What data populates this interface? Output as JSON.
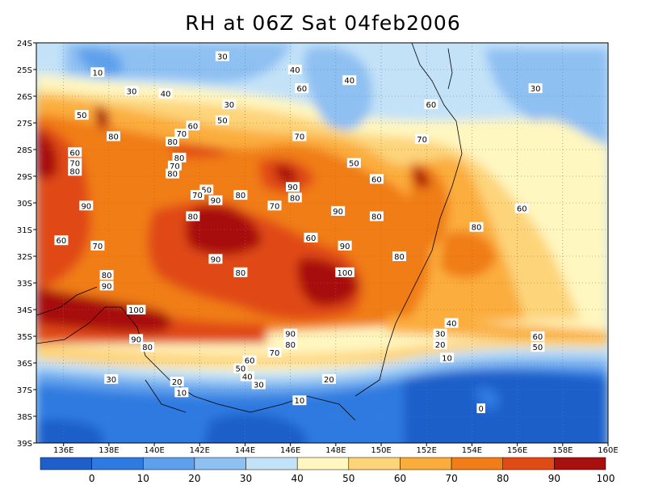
{
  "title": "RH at 06Z Sat 04feb2006",
  "colors": {
    "c0": "#1f5fc9",
    "c10": "#2e7ae0",
    "c20": "#5ea0ec",
    "c30": "#8ec0f2",
    "c40": "#c3e2f8",
    "c50": "#fff6c0",
    "c60": "#fdd47a",
    "c70": "#fbad3c",
    "c80": "#f07d18",
    "c90": "#e04a14",
    "c100": "#a80f0f"
  },
  "lat_ticks": [
    "24S",
    "25S",
    "26S",
    "27S",
    "28S",
    "29S",
    "30S",
    "31S",
    "32S",
    "33S",
    "34S",
    "35S",
    "36S",
    "37S",
    "38S",
    "39S"
  ],
  "lon_ticks": [
    "136E",
    "138E",
    "140E",
    "142E",
    "144E",
    "146E",
    "148E",
    "150E",
    "152E",
    "154E",
    "156E",
    "158E",
    "160E"
  ],
  "contour_labels": [
    {
      "t": "10",
      "lon": 137.5,
      "lat": 25.1
    },
    {
      "t": "30",
      "lon": 139.0,
      "lat": 25.8
    },
    {
      "t": "30",
      "lon": 143.0,
      "lat": 24.5
    },
    {
      "t": "40",
      "lon": 146.2,
      "lat": 25.0
    },
    {
      "t": "40",
      "lon": 140.5,
      "lat": 25.9
    },
    {
      "t": "40",
      "lon": 148.6,
      "lat": 25.4
    },
    {
      "t": "60",
      "lon": 146.5,
      "lat": 25.7
    },
    {
      "t": "30",
      "lon": 143.3,
      "lat": 26.3
    },
    {
      "t": "30",
      "lon": 156.8,
      "lat": 25.7
    },
    {
      "t": "50",
      "lon": 136.8,
      "lat": 26.7
    },
    {
      "t": "50",
      "lon": 143.0,
      "lat": 26.9
    },
    {
      "t": "60",
      "lon": 152.2,
      "lat": 26.3
    },
    {
      "t": "80",
      "lon": 138.2,
      "lat": 27.5
    },
    {
      "t": "60",
      "lon": 141.7,
      "lat": 27.1
    },
    {
      "t": "70",
      "lon": 141.2,
      "lat": 27.4
    },
    {
      "t": "80",
      "lon": 140.8,
      "lat": 27.7
    },
    {
      "t": "70",
      "lon": 146.4,
      "lat": 27.5
    },
    {
      "t": "70",
      "lon": 151.8,
      "lat": 27.6
    },
    {
      "t": "60",
      "lon": 136.5,
      "lat": 28.1
    },
    {
      "t": "70",
      "lon": 136.5,
      "lat": 28.5
    },
    {
      "t": "80",
      "lon": 136.5,
      "lat": 28.8
    },
    {
      "t": "80",
      "lon": 141.1,
      "lat": 28.3
    },
    {
      "t": "70",
      "lon": 140.9,
      "lat": 28.6
    },
    {
      "t": "80",
      "lon": 140.8,
      "lat": 28.9
    },
    {
      "t": "50",
      "lon": 148.8,
      "lat": 28.5
    },
    {
      "t": "60",
      "lon": 149.8,
      "lat": 29.1
    },
    {
      "t": "50",
      "lon": 142.3,
      "lat": 29.5
    },
    {
      "t": "70",
      "lon": 141.9,
      "lat": 29.7
    },
    {
      "t": "90",
      "lon": 142.7,
      "lat": 29.9
    },
    {
      "t": "80",
      "lon": 143.8,
      "lat": 29.7
    },
    {
      "t": "90",
      "lon": 146.1,
      "lat": 29.4
    },
    {
      "t": "80",
      "lon": 146.2,
      "lat": 29.8
    },
    {
      "t": "90",
      "lon": 137.0,
      "lat": 30.1
    },
    {
      "t": "70",
      "lon": 145.3,
      "lat": 30.1
    },
    {
      "t": "90",
      "lon": 148.1,
      "lat": 30.3
    },
    {
      "t": "80",
      "lon": 149.8,
      "lat": 30.5
    },
    {
      "t": "60",
      "lon": 156.2,
      "lat": 30.2
    },
    {
      "t": "80",
      "lon": 141.7,
      "lat": 30.5
    },
    {
      "t": "60",
      "lon": 146.9,
      "lat": 31.3
    },
    {
      "t": "80",
      "lon": 154.2,
      "lat": 30.9
    },
    {
      "t": "60",
      "lon": 135.9,
      "lat": 31.4
    },
    {
      "t": "70",
      "lon": 137.5,
      "lat": 31.6
    },
    {
      "t": "90",
      "lon": 148.4,
      "lat": 31.6
    },
    {
      "t": "90",
      "lon": 142.7,
      "lat": 32.1
    },
    {
      "t": "80",
      "lon": 150.8,
      "lat": 32.0
    },
    {
      "t": "80",
      "lon": 137.9,
      "lat": 32.7
    },
    {
      "t": "80",
      "lon": 143.8,
      "lat": 32.6
    },
    {
      "t": "100",
      "lon": 148.4,
      "lat": 32.6
    },
    {
      "t": "90",
      "lon": 137.9,
      "lat": 33.1
    },
    {
      "t": "100",
      "lon": 139.2,
      "lat": 34.0
    },
    {
      "t": "40",
      "lon": 153.1,
      "lat": 34.5
    },
    {
      "t": "30",
      "lon": 152.6,
      "lat": 34.9
    },
    {
      "t": "90",
      "lon": 139.2,
      "lat": 35.1
    },
    {
      "t": "80",
      "lon": 139.7,
      "lat": 35.4
    },
    {
      "t": "90",
      "lon": 146.0,
      "lat": 34.9
    },
    {
      "t": "80",
      "lon": 146.0,
      "lat": 35.3
    },
    {
      "t": "60",
      "lon": 156.9,
      "lat": 35.0
    },
    {
      "t": "20",
      "lon": 152.6,
      "lat": 35.3
    },
    {
      "t": "70",
      "lon": 145.3,
      "lat": 35.6
    },
    {
      "t": "50",
      "lon": 156.9,
      "lat": 35.4
    },
    {
      "t": "10",
      "lon": 152.9,
      "lat": 35.8
    },
    {
      "t": "60",
      "lon": 144.2,
      "lat": 35.9
    },
    {
      "t": "50",
      "lon": 143.8,
      "lat": 36.2
    },
    {
      "t": "40",
      "lon": 144.1,
      "lat": 36.5
    },
    {
      "t": "30",
      "lon": 144.6,
      "lat": 36.8
    },
    {
      "t": "20",
      "lon": 147.7,
      "lat": 36.6
    },
    {
      "t": "30",
      "lon": 138.1,
      "lat": 36.6
    },
    {
      "t": "20",
      "lon": 141.0,
      "lat": 36.7
    },
    {
      "t": "10",
      "lon": 141.2,
      "lat": 37.1
    },
    {
      "t": "10",
      "lon": 146.4,
      "lat": 37.4
    },
    {
      "t": "0",
      "lon": 154.4,
      "lat": 37.7
    }
  ],
  "colorbar": {
    "labels": [
      "0",
      "10",
      "20",
      "30",
      "40",
      "50",
      "60",
      "70",
      "80",
      "90",
      "100"
    ]
  }
}
